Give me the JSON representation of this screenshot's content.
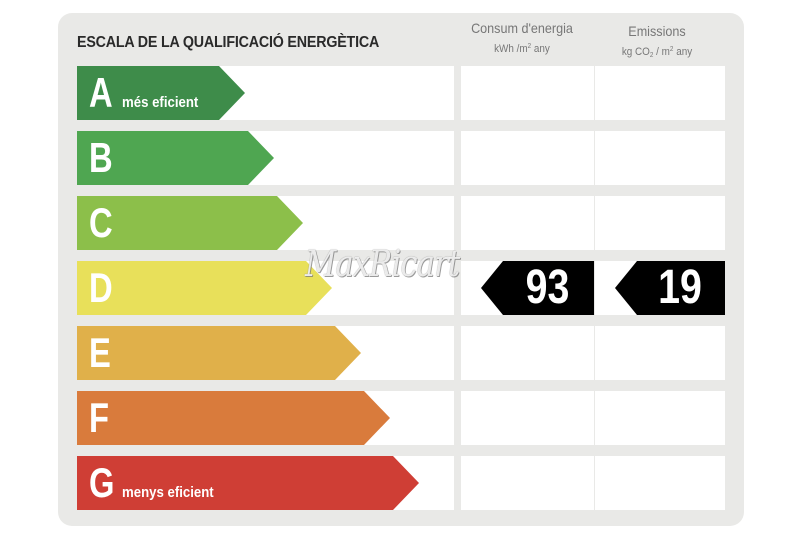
{
  "title": "ESCALA DE LA QUALIFICACIÓ ENERGÈTICA",
  "columns": {
    "consumption": {
      "label": "Consum d'energia",
      "unit_base": "kWh /m",
      "unit_exp": "2",
      "unit_tail": " any"
    },
    "emissions": {
      "label": "Emissions",
      "unit_a": "kg CO",
      "unit_sub": "2",
      "unit_b": " / m",
      "unit_exp": "2",
      "unit_tail": " any"
    }
  },
  "ratings": [
    {
      "letter": "A",
      "sublabel": "més eficient",
      "color": "#3e8c4a"
    },
    {
      "letter": "B",
      "sublabel": "",
      "color": "#4fa651"
    },
    {
      "letter": "C",
      "sublabel": "",
      "color": "#8cbf4a"
    },
    {
      "letter": "D",
      "sublabel": "",
      "color": "#e8e05a"
    },
    {
      "letter": "E",
      "sublabel": "",
      "color": "#e0b04a"
    },
    {
      "letter": "F",
      "sublabel": "",
      "color": "#d97b3c"
    },
    {
      "letter": "G",
      "sublabel": "menys eficient",
      "color": "#cf3e35"
    }
  ],
  "current_rating": "D",
  "consumption_value": "93",
  "emissions_value": "19",
  "watermark": "MaxRicart"
}
